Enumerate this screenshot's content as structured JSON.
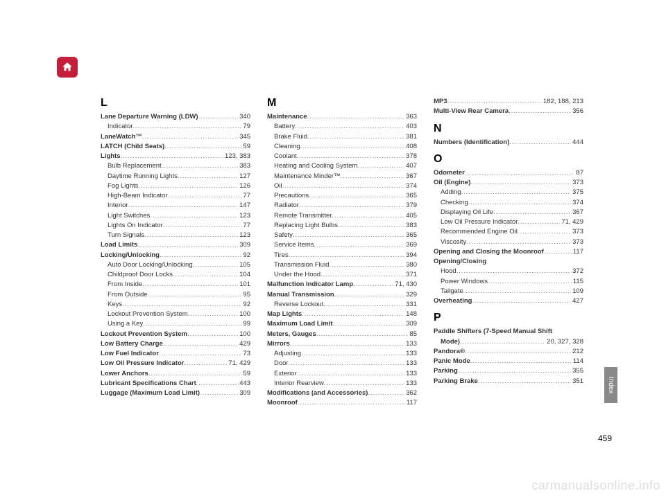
{
  "pageNumber": "459",
  "sideTab": "Index",
  "watermark": "carmanualsonline.info",
  "columns": [
    {
      "sections": [
        {
          "letter": "L",
          "entries": [
            {
              "label": "Lane Departure Warning (LDW)",
              "page": "340",
              "bold": true
            },
            {
              "label": "Indicator",
              "page": "79",
              "sub": true
            },
            {
              "label": "LaneWatch™",
              "page": "345",
              "bold": true
            },
            {
              "label": "LATCH (Child Seats)",
              "page": "59",
              "bold": true
            },
            {
              "label": "Lights",
              "page": "123, 383",
              "bold": true
            },
            {
              "label": "Bulb Replacement",
              "page": "383",
              "sub": true
            },
            {
              "label": "Daytime Running Lights",
              "page": "127",
              "sub": true
            },
            {
              "label": "Fog Lights",
              "page": "126",
              "sub": true
            },
            {
              "label": "High-Beam Indicator",
              "page": "77",
              "sub": true
            },
            {
              "label": "Interior",
              "page": "147",
              "sub": true
            },
            {
              "label": "Light Switches",
              "page": "123",
              "sub": true
            },
            {
              "label": "Lights On Indicator",
              "page": "77",
              "sub": true
            },
            {
              "label": "Turn Signals",
              "page": "123",
              "sub": true
            },
            {
              "label": "Load Limits",
              "page": "309",
              "bold": true
            },
            {
              "label": "Locking/Unlocking",
              "page": "92",
              "bold": true
            },
            {
              "label": "Auto Door Locking/Unlocking",
              "page": "105",
              "sub": true
            },
            {
              "label": "Childproof Door Locks",
              "page": "104",
              "sub": true
            },
            {
              "label": "From Inside",
              "page": "101",
              "sub": true
            },
            {
              "label": "From Outside",
              "page": "95",
              "sub": true
            },
            {
              "label": "Keys",
              "page": "92",
              "sub": true
            },
            {
              "label": "Lockout Prevention System",
              "page": "100",
              "sub": true
            },
            {
              "label": "Using a Key",
              "page": "99",
              "sub": true
            },
            {
              "label": "Lockout Prevention System",
              "page": "100",
              "bold": true
            },
            {
              "label": "Low Battery Charge",
              "page": "429",
              "bold": true
            },
            {
              "label": "Low Fuel Indicator",
              "page": "73",
              "bold": true
            },
            {
              "label": "Low Oil Pressure Indicator",
              "page": "71, 429",
              "bold": true
            },
            {
              "label": "Lower Anchors",
              "page": "59",
              "bold": true
            },
            {
              "label": "Lubricant Specifications Chart",
              "page": "443",
              "bold": true
            },
            {
              "label": "Luggage (Maximum Load Limit)",
              "page": "309",
              "bold": true
            }
          ]
        }
      ]
    },
    {
      "sections": [
        {
          "letter": "M",
          "entries": [
            {
              "label": "Maintenance",
              "page": "363",
              "bold": true
            },
            {
              "label": "Battery",
              "page": "403",
              "sub": true
            },
            {
              "label": "Brake Fluid",
              "page": "381",
              "sub": true
            },
            {
              "label": "Cleaning",
              "page": "408",
              "sub": true
            },
            {
              "label": "Coolant",
              "page": "378",
              "sub": true
            },
            {
              "label": "Heating and Cooling System",
              "page": "407",
              "sub": true
            },
            {
              "label": "Maintenance Minder™",
              "page": "367",
              "sub": true
            },
            {
              "label": "Oil",
              "page": "374",
              "sub": true
            },
            {
              "label": "Precautions",
              "page": "365",
              "sub": true
            },
            {
              "label": "Radiator",
              "page": "379",
              "sub": true
            },
            {
              "label": "Remote Transmitter",
              "page": "405",
              "sub": true
            },
            {
              "label": "Replacing Light Bulbs",
              "page": "383",
              "sub": true
            },
            {
              "label": "Safety",
              "page": "365",
              "sub": true
            },
            {
              "label": "Service Items",
              "page": "369",
              "sub": true
            },
            {
              "label": "Tires",
              "page": "394",
              "sub": true
            },
            {
              "label": "Transmission Fluid",
              "page": "380",
              "sub": true
            },
            {
              "label": "Under the Hood",
              "page": "371",
              "sub": true
            },
            {
              "label": "Malfunction Indicator Lamp",
              "page": "71, 430",
              "bold": true
            },
            {
              "label": "Manual Transmission",
              "page": "329",
              "bold": true
            },
            {
              "label": "Reverse Lockout",
              "page": "331",
              "sub": true
            },
            {
              "label": "Map Lights",
              "page": "148",
              "bold": true
            },
            {
              "label": "Maximum Load Limit",
              "page": "309",
              "bold": true
            },
            {
              "label": "Meters, Gauges",
              "page": "85",
              "bold": true
            },
            {
              "label": "Mirrors",
              "page": "133",
              "bold": true
            },
            {
              "label": "Adjusting",
              "page": "133",
              "sub": true
            },
            {
              "label": "Door",
              "page": "133",
              "sub": true
            },
            {
              "label": "Exterior",
              "page": "133",
              "sub": true
            },
            {
              "label": "Interior Rearview",
              "page": "133",
              "sub": true
            },
            {
              "label": "Modifications (and Accessories)",
              "page": "362",
              "bold": true
            },
            {
              "label": "Moonroof",
              "page": "117",
              "bold": true
            }
          ]
        }
      ]
    },
    {
      "sections": [
        {
          "letter": "",
          "entries": [
            {
              "label": "MP3",
              "page": "182, 188, 213",
              "bold": true
            },
            {
              "label": "Multi-View Rear Camera",
              "page": "356",
              "bold": true
            }
          ]
        },
        {
          "letter": "N",
          "entries": [
            {
              "label": "Numbers (Identification)",
              "page": "444",
              "bold": true
            }
          ]
        },
        {
          "letter": "O",
          "entries": [
            {
              "label": "Odometer",
              "page": "87",
              "bold": true
            },
            {
              "label": "Oil (Engine)",
              "page": "373",
              "bold": true
            },
            {
              "label": "Adding",
              "page": "375",
              "sub": true
            },
            {
              "label": "Checking",
              "page": "374",
              "sub": true
            },
            {
              "label": "Displaying Oil Life",
              "page": "367",
              "sub": true
            },
            {
              "label": "Low Oil Pressure Indicator",
              "page": "71, 429",
              "sub": true
            },
            {
              "label": "Recommended Engine Oil",
              "page": "373",
              "sub": true
            },
            {
              "label": "Viscosity",
              "page": "373",
              "sub": true
            },
            {
              "label": "Opening and Closing the Moonroof",
              "page": "117",
              "bold": true
            },
            {
              "label": "Opening/Closing",
              "page": "",
              "bold": true
            },
            {
              "label": "Hood",
              "page": "372",
              "sub": true
            },
            {
              "label": "Power Windows",
              "page": "115",
              "sub": true
            },
            {
              "label": "Tailgate",
              "page": "109",
              "sub": true
            },
            {
              "label": "Overheating",
              "page": "427",
              "bold": true
            }
          ]
        },
        {
          "letter": "P",
          "entries": [
            {
              "label": "Paddle Shifters (7-Speed Manual Shift Mode)",
              "page": "20, 327, 328",
              "bold": true,
              "wrap": true
            },
            {
              "label": "Pandora®",
              "page": "212",
              "bold": true
            },
            {
              "label": "Panic Mode",
              "page": "114",
              "bold": true
            },
            {
              "label": "Parking",
              "page": "355",
              "bold": true
            },
            {
              "label": "Parking Brake",
              "page": "351",
              "bold": true
            }
          ]
        }
      ]
    }
  ]
}
